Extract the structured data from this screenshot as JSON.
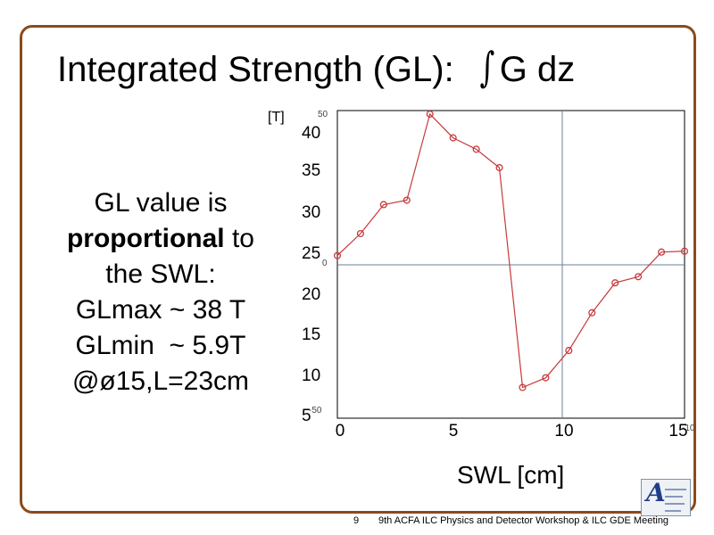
{
  "slide": {
    "title": "Integrated Strength (GL):",
    "title_integral": "∫",
    "title_suffix": "G dz",
    "side_text": {
      "line1": "GL value is",
      "line2_bold": "proportional",
      "line2_rest": " to",
      "line3": "the SWL:",
      "line4": "GLmax ~ 38 T",
      "line5": "GLmin  ~ 5.9T",
      "line6": "@ø15,L=23cm"
    },
    "slide_number": "9",
    "footer": "9th ACFA ILC Physics and Detector Workshop & ILC GDE Meeting",
    "logo_letter": "A",
    "frame_color": "#8b4a1c"
  },
  "chart_data": {
    "type": "line",
    "xlabel": "SWL [cm]",
    "ylabel": "[T]",
    "xlim": [
      0,
      15
    ],
    "ylim": [
      5,
      40
    ],
    "x_ticks": [
      "0",
      "5",
      "10",
      "15"
    ],
    "y_ticks": [
      "40",
      "35",
      "30",
      "25",
      "20",
      "15",
      "10",
      "5"
    ],
    "inner_tick_labels": [
      "50",
      "0",
      "-50",
      "-10"
    ],
    "grid": "x=0 and y=0 reference lines only",
    "series": [
      {
        "color": "#c8393b",
        "x": [
          0,
          1,
          2,
          3,
          4,
          5,
          6,
          7,
          8,
          9,
          10,
          11,
          12,
          13,
          14,
          15
        ],
        "y": [
          23.5,
          26.0,
          29.3,
          29.8,
          39.6,
          36.9,
          35.6,
          33.5,
          8.5,
          9.6,
          12.7,
          17.0,
          20.4,
          21.1,
          23.9,
          24.0
        ]
      }
    ]
  }
}
